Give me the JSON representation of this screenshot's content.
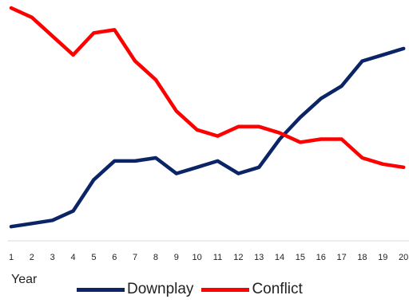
{
  "chart_data": {
    "type": "line",
    "x": [
      1,
      2,
      3,
      4,
      5,
      6,
      7,
      8,
      9,
      10,
      11,
      12,
      13,
      14,
      15,
      16,
      17,
      18,
      19,
      20
    ],
    "xlabel": "Year",
    "ylabel": "",
    "ylim": [
      0,
      36
    ],
    "grid": false,
    "legend_position": "bottom",
    "series": [
      {
        "name": "Downplay",
        "color": "#0a2466",
        "values": [
          1.0,
          1.5,
          2.0,
          3.5,
          8.5,
          11.5,
          11.5,
          12.0,
          9.5,
          10.5,
          11.5,
          9.5,
          10.5,
          15.0,
          18.5,
          21.5,
          23.5,
          27.5,
          28.5,
          29.5
        ]
      },
      {
        "name": "Conflict",
        "color": "#ff0000",
        "values": [
          36.0,
          34.5,
          31.5,
          28.5,
          32.0,
          32.5,
          27.5,
          24.5,
          19.5,
          16.5,
          15.5,
          17.0,
          17.0,
          16.0,
          14.5,
          15.0,
          15.0,
          12.0,
          11.0,
          10.5
        ]
      }
    ]
  }
}
